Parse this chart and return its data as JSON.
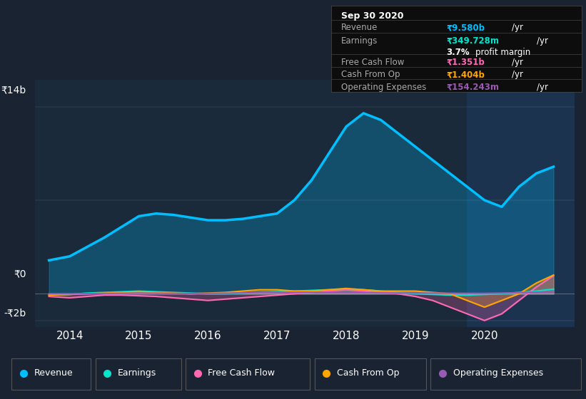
{
  "bg_color": "#1a2332",
  "plot_bg_color": "#1a2a3a",
  "highlight_bg": "#1e3a5f",
  "y_label_top": "₹14b",
  "y_label_zero": "₹0",
  "y_label_neg": "-₹2b",
  "x_ticks": [
    2014,
    2015,
    2016,
    2017,
    2018,
    2019,
    2020
  ],
  "revenue_color": "#00bfff",
  "earnings_color": "#00e5cc",
  "fcf_color": "#ff69b4",
  "cashop_color": "#ffa500",
  "opex_color": "#9b59b6",
  "table_date": "Sep 30 2020",
  "table_revenue_val": "₹9.580b",
  "table_earnings_val": "₹349.728m",
  "table_fcf_val": "₹1.351b",
  "table_cashop_val": "₹1.404b",
  "table_opex_val": "₹154.243m",
  "revenue_x": [
    2013.7,
    2014.0,
    2014.25,
    2014.5,
    2014.75,
    2015.0,
    2015.25,
    2015.5,
    2015.75,
    2016.0,
    2016.25,
    2016.5,
    2016.75,
    2017.0,
    2017.25,
    2017.5,
    2017.75,
    2018.0,
    2018.25,
    2018.5,
    2018.75,
    2019.0,
    2019.25,
    2019.5,
    2019.75,
    2020.0,
    2020.25,
    2020.5,
    2020.75,
    2021.0
  ],
  "revenue_y": [
    2500000000,
    2800000000,
    3500000000,
    4200000000,
    5000000000,
    5800000000,
    6000000000,
    5900000000,
    5700000000,
    5500000000,
    5500000000,
    5600000000,
    5800000000,
    6000000000,
    7000000000,
    8500000000,
    10500000000,
    12500000000,
    13500000000,
    13000000000,
    12000000000,
    11000000000,
    10000000000,
    9000000000,
    8000000000,
    7000000000,
    6500000000,
    8000000000,
    9000000000,
    9500000000
  ],
  "earnings_x": [
    2013.7,
    2014.0,
    2014.25,
    2014.5,
    2014.75,
    2015.0,
    2015.25,
    2015.5,
    2015.75,
    2016.0,
    2016.25,
    2016.5,
    2016.75,
    2017.0,
    2017.25,
    2017.5,
    2017.75,
    2018.0,
    2018.25,
    2018.5,
    2018.75,
    2019.0,
    2019.25,
    2019.5,
    2019.75,
    2020.0,
    2020.25,
    2020.5,
    2020.75,
    2021.0
  ],
  "earnings_y": [
    -100000000,
    -50000000,
    50000000,
    100000000,
    150000000,
    200000000,
    150000000,
    100000000,
    50000000,
    0,
    0,
    50000000,
    100000000,
    150000000,
    200000000,
    250000000,
    300000000,
    350000000,
    300000000,
    200000000,
    100000000,
    0,
    -50000000,
    -100000000,
    -100000000,
    -50000000,
    0,
    100000000,
    200000000,
    350000000
  ],
  "fcf_x": [
    2013.7,
    2014.0,
    2014.25,
    2014.5,
    2014.75,
    2015.0,
    2015.25,
    2015.5,
    2015.75,
    2016.0,
    2016.25,
    2016.5,
    2016.75,
    2017.0,
    2017.25,
    2017.5,
    2017.75,
    2018.0,
    2018.25,
    2018.5,
    2018.75,
    2019.0,
    2019.25,
    2019.5,
    2019.75,
    2020.0,
    2020.25,
    2020.5,
    2020.75,
    2021.0
  ],
  "fcf_y": [
    -200000000,
    -300000000,
    -200000000,
    -100000000,
    -100000000,
    -150000000,
    -200000000,
    -300000000,
    -400000000,
    -500000000,
    -400000000,
    -300000000,
    -200000000,
    -100000000,
    0,
    100000000,
    200000000,
    300000000,
    200000000,
    100000000,
    0,
    -200000000,
    -500000000,
    -1000000000,
    -1500000000,
    -2000000000,
    -1500000000,
    -500000000,
    500000000,
    1350000000
  ],
  "cashop_x": [
    2013.7,
    2014.0,
    2014.25,
    2014.5,
    2014.75,
    2015.0,
    2015.25,
    2015.5,
    2015.75,
    2016.0,
    2016.25,
    2016.5,
    2016.75,
    2017.0,
    2017.25,
    2017.5,
    2017.75,
    2018.0,
    2018.25,
    2018.5,
    2018.75,
    2019.0,
    2019.25,
    2019.5,
    2019.75,
    2020.0,
    2020.25,
    2020.5,
    2020.75,
    2021.0
  ],
  "cashop_y": [
    -100000000,
    -50000000,
    0,
    50000000,
    100000000,
    150000000,
    100000000,
    50000000,
    0,
    50000000,
    100000000,
    200000000,
    300000000,
    300000000,
    200000000,
    200000000,
    300000000,
    400000000,
    300000000,
    200000000,
    200000000,
    200000000,
    100000000,
    0,
    -500000000,
    -1000000000,
    -500000000,
    0,
    800000000,
    1400000000
  ],
  "opex_x": [
    2013.7,
    2014.0,
    2014.25,
    2014.5,
    2014.75,
    2015.0,
    2015.25,
    2015.5,
    2015.75,
    2016.0,
    2016.25,
    2016.5,
    2016.75,
    2017.0,
    2017.25,
    2017.5,
    2017.75,
    2018.0,
    2018.25,
    2018.5,
    2018.75,
    2019.0,
    2019.25,
    2019.5,
    2019.75,
    2020.0,
    2020.25,
    2020.5,
    2020.75,
    2021.0
  ],
  "opex_y": [
    0,
    0,
    10000000,
    20000000,
    30000000,
    50000000,
    40000000,
    30000000,
    20000000,
    30000000,
    40000000,
    60000000,
    80000000,
    100000000,
    100000000,
    100000000,
    100000000,
    100000000,
    80000000,
    60000000,
    50000000,
    50000000,
    50000000,
    40000000,
    30000000,
    30000000,
    50000000,
    80000000,
    120000000,
    154000000
  ]
}
